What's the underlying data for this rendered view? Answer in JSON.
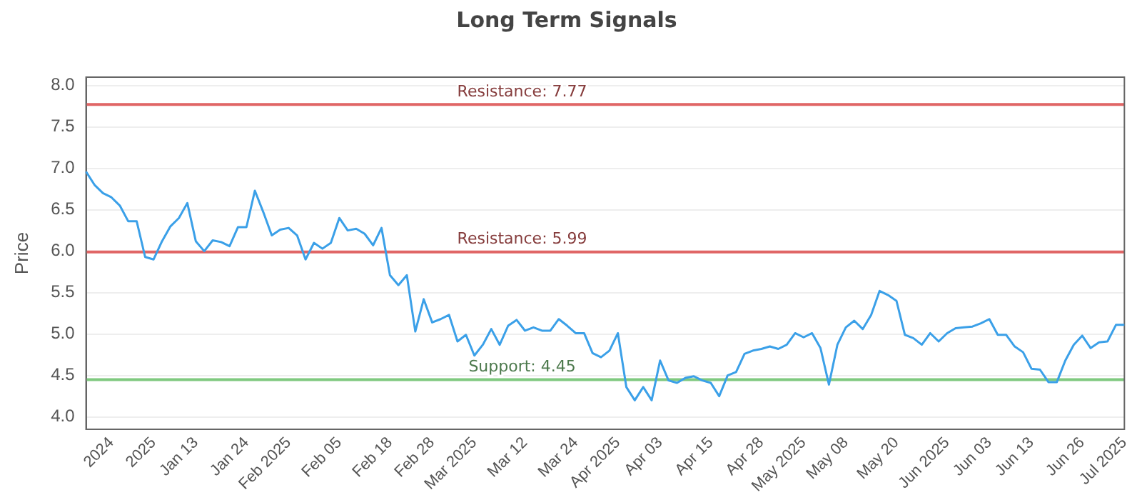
{
  "chart_data": {
    "type": "line",
    "title": "Long Term Signals",
    "ylabel": "Price",
    "categories": [
      null,
      null,
      null,
      "2024",
      null,
      null,
      null,
      null,
      "2025",
      null,
      null,
      null,
      null,
      "Jan 13",
      null,
      null,
      null,
      null,
      null,
      "Jan 24",
      null,
      null,
      null,
      null,
      "Feb 2025",
      null,
      null,
      null,
      null,
      null,
      "Feb 05",
      null,
      null,
      null,
      null,
      null,
      "Feb 18",
      null,
      null,
      null,
      null,
      "Feb 28",
      null,
      null,
      null,
      null,
      "Mar 2025",
      null,
      null,
      null,
      null,
      null,
      "Mar 12",
      null,
      null,
      null,
      null,
      null,
      "Mar 24",
      null,
      null,
      null,
      null,
      "Apr 2025",
      null,
      null,
      null,
      null,
      "Apr 03",
      null,
      null,
      null,
      null,
      null,
      "Apr 15",
      null,
      null,
      null,
      null,
      null,
      "Apr 28",
      null,
      null,
      null,
      null,
      "May 2025",
      null,
      null,
      null,
      null,
      "May 08",
      null,
      null,
      null,
      null,
      null,
      "May 20",
      null,
      null,
      null,
      null,
      null,
      "Jun 2025",
      null,
      null,
      null,
      null,
      "Jun 03",
      null,
      null,
      null,
      null,
      "Jun 13",
      null,
      null,
      null,
      null,
      null,
      "Jun 26",
      null,
      null,
      null,
      null,
      "Jul 2025"
    ],
    "series": [
      {
        "color": "#3ba0e8",
        "values": [
          6.96,
          6.8,
          6.7,
          6.65,
          6.55,
          6.36,
          6.36,
          5.93,
          5.9,
          6.12,
          6.3,
          6.4,
          6.58,
          6.12,
          6.0,
          6.13,
          6.11,
          6.06,
          6.29,
          6.29,
          6.73,
          6.47,
          6.19,
          6.26,
          6.28,
          6.19,
          5.9,
          6.1,
          6.03,
          6.1,
          6.4,
          6.25,
          6.27,
          6.21,
          6.07,
          6.28,
          5.71,
          5.59,
          5.71,
          5.03,
          5.42,
          5.14,
          5.18,
          5.23,
          4.91,
          4.99,
          4.74,
          4.87,
          5.06,
          4.87,
          5.1,
          5.17,
          5.04,
          5.08,
          5.04,
          5.04,
          5.18,
          5.1,
          5.01,
          5.01,
          4.77,
          4.72,
          4.8,
          5.01,
          4.36,
          4.2,
          4.36,
          4.2,
          4.68,
          4.44,
          4.41,
          4.47,
          4.49,
          4.44,
          4.41,
          4.25,
          4.5,
          4.54,
          4.76,
          4.8,
          4.82,
          4.85,
          4.82,
          4.87,
          5.01,
          4.96,
          5.01,
          4.83,
          4.39,
          4.87,
          5.08,
          5.16,
          5.06,
          5.23,
          5.52,
          5.47,
          5.4,
          4.99,
          4.95,
          4.87,
          5.01,
          4.91,
          5.01,
          5.07,
          5.08,
          5.09,
          5.13,
          5.18,
          4.99,
          4.99,
          4.85,
          4.78,
          4.58,
          4.57,
          4.42,
          4.42,
          4.68,
          4.87,
          4.98,
          4.83,
          4.9,
          4.91,
          5.11,
          5.11
        ]
      }
    ],
    "ylim": [
      3.85,
      8.1
    ],
    "yticks": [
      {
        "value": 4,
        "label": "4.0"
      },
      4.5,
      {
        "value": 5,
        "label": "5.0"
      },
      5.5,
      {
        "value": 6,
        "label": "6.0"
      },
      6.5,
      {
        "value": 7,
        "label": "7.0"
      },
      7.5,
      {
        "value": 8,
        "label": "8.0"
      }
    ],
    "ref_lines": [
      {
        "axis": "y",
        "value": 7.77,
        "label": "Resistance: 7.77",
        "color": "#e06666"
      },
      {
        "axis": "y",
        "value": 5.99,
        "label": "Resistance: 5.99",
        "color": "#e06666"
      },
      {
        "axis": "y",
        "value": 4.45,
        "label": "Support: 4.45",
        "color": "#7fc97f"
      }
    ],
    "grid": "y",
    "legend": false,
    "marker": "none",
    "line_style": "solid"
  }
}
